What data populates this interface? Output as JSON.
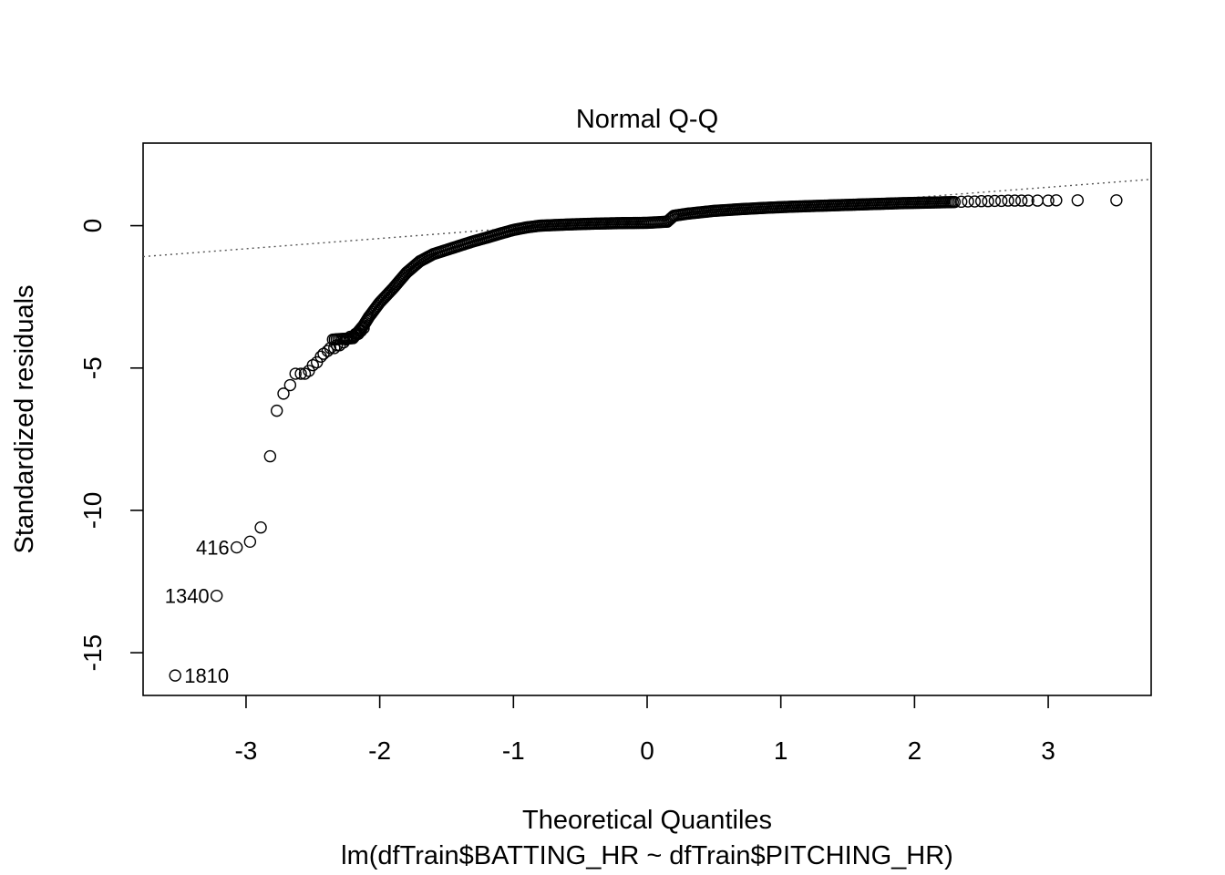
{
  "chart_data": {
    "type": "scatter",
    "title": "Normal Q-Q",
    "xlabel": "Theoretical Quantiles",
    "subtitle": "lm(dfTrain$BATTING_HR ~ dfTrain$PITCHING_HR)",
    "ylabel": "Standardized residuals",
    "xlim": [
      -3.77,
      3.77
    ],
    "ylim": [
      -16.5,
      2.9
    ],
    "x_ticks": [
      -3,
      -2,
      -1,
      0,
      1,
      2,
      3
    ],
    "x_tick_labels": [
      "-3",
      "-2",
      "-1",
      "0",
      "1",
      "2",
      "3"
    ],
    "y_ticks": [
      -15,
      -10,
      -5,
      0
    ],
    "y_tick_labels": [
      "-15",
      "-10",
      "-5",
      "0"
    ],
    "reference_line": {
      "style": "dotted",
      "intercept": 0.27,
      "slope": 0.36
    },
    "curve_points": [
      [
        -2.35,
        -4.0
      ],
      [
        -2.2,
        -3.95
      ],
      [
        -2.12,
        -3.5
      ],
      [
        -2.08,
        -3.2
      ],
      [
        -2.0,
        -2.7
      ],
      [
        -1.9,
        -2.2
      ],
      [
        -1.8,
        -1.65
      ],
      [
        -1.7,
        -1.25
      ],
      [
        -1.6,
        -1.0
      ],
      [
        -1.5,
        -0.85
      ],
      [
        -1.4,
        -0.7
      ],
      [
        -1.3,
        -0.55
      ],
      [
        -1.2,
        -0.42
      ],
      [
        -1.1,
        -0.28
      ],
      [
        -1.0,
        -0.15
      ],
      [
        -0.9,
        -0.06
      ],
      [
        -0.8,
        0.0
      ],
      [
        -0.6,
        0.04
      ],
      [
        -0.4,
        0.07
      ],
      [
        -0.2,
        0.09
      ],
      [
        0.0,
        0.1
      ],
      [
        0.15,
        0.14
      ],
      [
        0.2,
        0.35
      ],
      [
        0.3,
        0.42
      ],
      [
        0.5,
        0.52
      ],
      [
        0.7,
        0.58
      ],
      [
        0.9,
        0.63
      ],
      [
        1.1,
        0.67
      ],
      [
        1.3,
        0.7
      ],
      [
        1.5,
        0.73
      ],
      [
        1.7,
        0.76
      ],
      [
        1.9,
        0.79
      ],
      [
        2.1,
        0.81
      ],
      [
        2.3,
        0.83
      ]
    ],
    "tail_points": [
      [
        -3.53,
        -15.8
      ],
      [
        -3.22,
        -13.0
      ],
      [
        -3.07,
        -11.3
      ],
      [
        -2.97,
        -11.1
      ],
      [
        -2.89,
        -10.6
      ],
      [
        -2.82,
        -8.1
      ],
      [
        -2.77,
        -6.5
      ],
      [
        -2.72,
        -5.9
      ],
      [
        -2.67,
        -5.6
      ],
      [
        -2.63,
        -5.2
      ],
      [
        -2.59,
        -5.2
      ],
      [
        -2.56,
        -5.2
      ],
      [
        -2.53,
        -5.1
      ],
      [
        -2.5,
        -4.9
      ],
      [
        -2.47,
        -4.8
      ],
      [
        -2.44,
        -4.6
      ],
      [
        -2.42,
        -4.5
      ],
      [
        -2.39,
        -4.4
      ],
      [
        -2.37,
        -4.3
      ],
      [
        -2.34,
        -4.3
      ],
      [
        -2.32,
        -4.2
      ],
      [
        -2.3,
        -4.2
      ],
      [
        -2.27,
        -4.1
      ],
      [
        -2.25,
        -4.0
      ],
      [
        -2.22,
        -3.9
      ],
      [
        -2.2,
        -3.9
      ],
      [
        -2.18,
        -3.8
      ],
      [
        -2.16,
        -3.8
      ],
      [
        -2.14,
        -3.7
      ],
      [
        -2.12,
        -3.6
      ],
      [
        2.35,
        0.84
      ],
      [
        2.4,
        0.85
      ],
      [
        2.45,
        0.85
      ],
      [
        2.5,
        0.86
      ],
      [
        2.55,
        0.86
      ],
      [
        2.6,
        0.87
      ],
      [
        2.65,
        0.87
      ],
      [
        2.7,
        0.88
      ],
      [
        2.75,
        0.88
      ],
      [
        2.8,
        0.88
      ],
      [
        2.85,
        0.88
      ],
      [
        2.92,
        0.88
      ],
      [
        3.0,
        0.88
      ],
      [
        3.06,
        0.89
      ],
      [
        3.22,
        0.89
      ],
      [
        3.51,
        0.89
      ]
    ],
    "labeled_points": [
      {
        "id": "1810",
        "x": -3.53,
        "y": -15.8,
        "side": "right"
      },
      {
        "id": "1340",
        "x": -3.22,
        "y": -13.0,
        "side": "left"
      },
      {
        "id": "416",
        "x": -3.07,
        "y": -11.3,
        "side": "left"
      }
    ]
  }
}
